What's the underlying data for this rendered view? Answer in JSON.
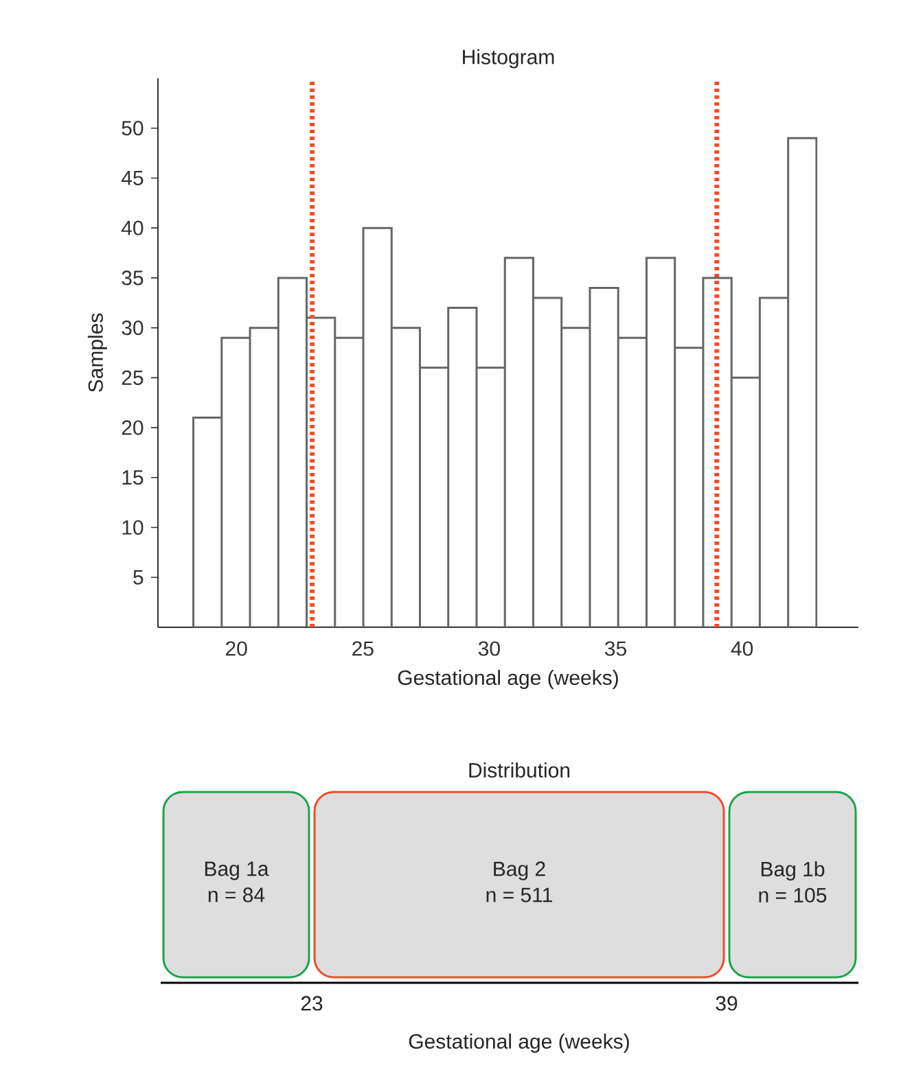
{
  "chart_data": [
    {
      "type": "histogram",
      "title": "Histogram",
      "xlabel": "Gestational age (weeks)",
      "ylabel": "Samples",
      "bins": [
        18.3,
        19.42,
        20.54,
        21.66,
        22.78,
        23.9,
        25.02,
        26.14,
        27.26,
        28.38,
        29.5,
        30.62,
        31.74,
        32.86,
        33.98,
        35.1,
        36.22,
        37.34,
        38.46,
        39.58,
        40.7,
        41.82,
        42.94
      ],
      "values": [
        21,
        29,
        30,
        35,
        31,
        29,
        40,
        30,
        26,
        32,
        26,
        37,
        33,
        30,
        34,
        29,
        37,
        28,
        35,
        25,
        33,
        49
      ],
      "color": "#ffffff",
      "xlim": [
        16.9,
        44.6
      ],
      "ylim": [
        0,
        55
      ],
      "xticks": [
        20,
        25,
        30,
        35,
        40
      ],
      "yticks": [
        5,
        10,
        15,
        20,
        25,
        30,
        35,
        40,
        45,
        50
      ],
      "ref_lines": [
        {
          "axis": "x",
          "value": 23,
          "color": "#f04e23",
          "line_style": "dotted"
        },
        {
          "axis": "x",
          "value": 39,
          "color": "#f04e23",
          "line_style": "dotted"
        }
      ],
      "tick_labels": true
    },
    {
      "type": "other",
      "title": "Distribution",
      "xlabel": "Gestational age (weeks)",
      "categories": [
        "Bag 1a",
        "Bag 2",
        "Bag 1b"
      ],
      "value_labels": [
        "n = 84",
        "n = 511",
        "n = 105"
      ],
      "colors": [
        "#1aa34a",
        "#ef4b2a",
        "#1aa34a"
      ],
      "annotations": [
        "23",
        "39"
      ]
    }
  ]
}
